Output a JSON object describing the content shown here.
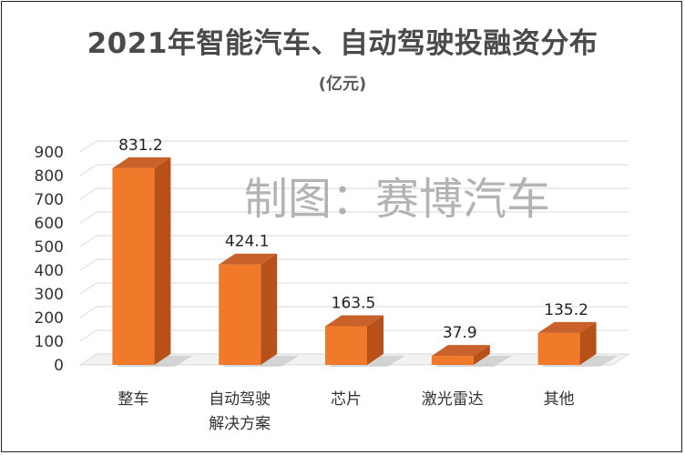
{
  "title": "2021年智能汽车、自动驾驶投融资分布",
  "subtitle": "(亿元)",
  "watermark": "制图：赛博汽车",
  "colors": {
    "bar_front": "#f07a2a",
    "bar_side": "#b8501a",
    "bar_top": "#c9622a",
    "grid": "#d9d9d9",
    "shadow": "#bfbfbf"
  },
  "chart_data": {
    "type": "bar",
    "categories": [
      "整车",
      "自动驾驶\n解决方案",
      "芯片",
      "激光雷达",
      "其他"
    ],
    "values": [
      831.2,
      424.1,
      163.5,
      37.9,
      135.2
    ],
    "data_labels": [
      "831.2",
      "424.1",
      "163.5",
      "37.9",
      "135.2"
    ],
    "ylim": [
      0,
      900
    ],
    "yticks": [
      0,
      100,
      200,
      300,
      400,
      500,
      600,
      700,
      800,
      900
    ],
    "grid": true,
    "style": "3d-column"
  }
}
